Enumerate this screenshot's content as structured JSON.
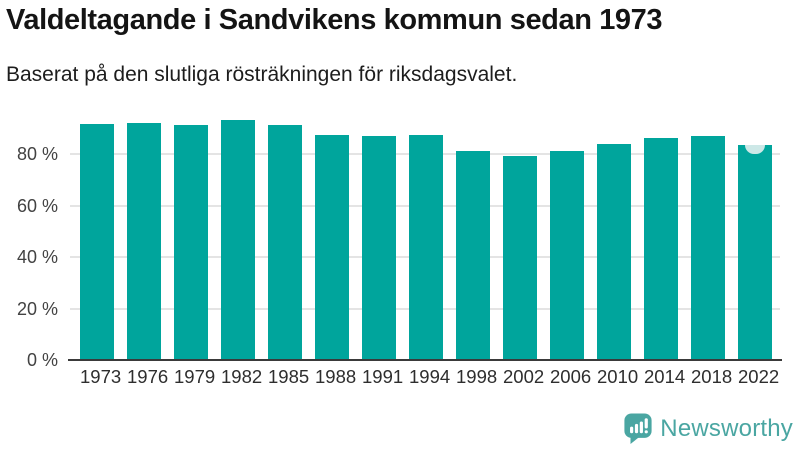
{
  "header": {
    "title": "Valdeltagande i Sandvikens kommun sedan 1973",
    "subtitle": "Baserat på den slutliga rösträkningen för riksdagsvalet."
  },
  "chart_data": {
    "type": "bar",
    "title": "Valdeltagande i Sandvikens kommun sedan 1973",
    "subtitle": "Baserat på den slutliga rösträkningen för riksdagsvalet.",
    "categories": [
      "1973",
      "1976",
      "1979",
      "1982",
      "1985",
      "1988",
      "1991",
      "1994",
      "1998",
      "2002",
      "2006",
      "2010",
      "2014",
      "2018",
      "2022"
    ],
    "values": [
      91.7,
      92.4,
      91.5,
      93.2,
      91.5,
      87.5,
      87.3,
      87.5,
      81.5,
      79.4,
      81.2,
      84.0,
      86.4,
      87.3,
      83.5
    ],
    "unit": "%",
    "xlabel": "",
    "ylabel": "",
    "ylim": [
      0,
      100
    ],
    "ytick_values": [
      0,
      20,
      40,
      60,
      80
    ],
    "ytick_labels": [
      "0 %",
      "20 %",
      "40 %",
      "60 %",
      "80 %"
    ],
    "grid": "horizontal",
    "legend": "none",
    "bar_color": "#00a59c",
    "gridline_color": "#e4e4e4",
    "axis_line_color": "#3a3a3a",
    "last_bar_marker": {
      "index": 14,
      "color": "#cde8e7",
      "shape": "rounded-notch-top-center"
    }
  },
  "footer": {
    "brand_label": "Newsworthy",
    "brand_color": "#4aa6a2",
    "logo_icon": "newsworthy-speech-bubble-bar-chart-icon"
  }
}
